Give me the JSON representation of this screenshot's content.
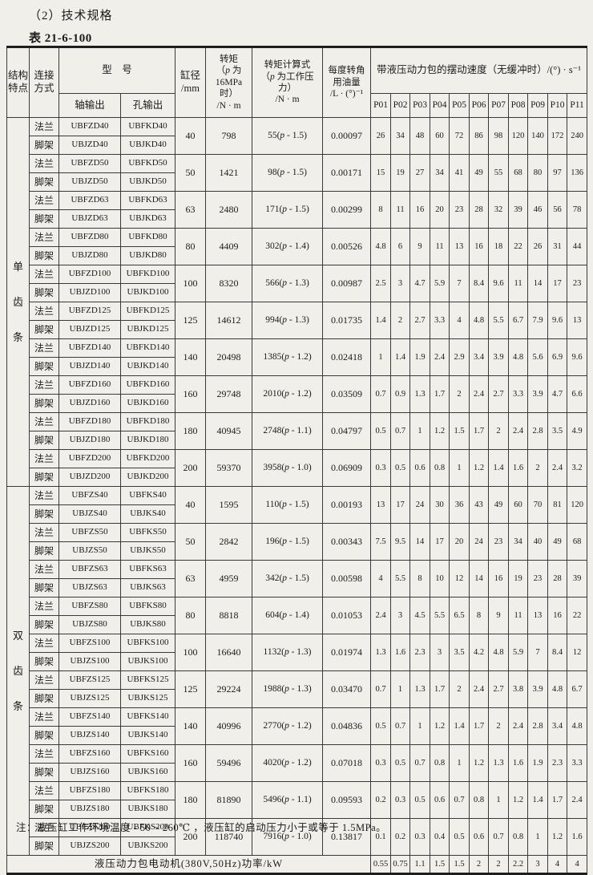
{
  "page": {
    "heading": "（2）技术规格",
    "table_label": "表 21-6-100",
    "note": "注：液压缸工作环境温度 - 50 ~ 260℃ ，液压缸的启动压力小于或等于 1.5MPa。"
  },
  "table": {
    "headers": {
      "structure": "结构\n特点",
      "connection": "连接\n方式",
      "model": "型　号",
      "shaft_output": "轴输出",
      "hole_output": "孔输出",
      "bore": "缸径\n/mm",
      "torque": "转矩\n（p 为\n16MPa 时）\n/N · m",
      "torque_formula": "转矩计算式\n（p 为工作压力）\n/N · m",
      "oil_per_degree": "每度转角\n用油量\n/L · (°)⁻¹",
      "swing_speed": "带液压动力包的摆动速度（无缓冲时）/(°) · s⁻¹",
      "p_columns": [
        "P01",
        "P02",
        "P03",
        "P04",
        "P05",
        "P06",
        "P07",
        "P08",
        "P09",
        "P10",
        "P11"
      ]
    },
    "groups": [
      {
        "structure": "单\n齿\n条",
        "rows": [
          {
            "bore": "40",
            "torque": "798",
            "formula": "55(p-1.5)",
            "oil": "0.00097",
            "speeds": [
              "26",
              "34",
              "48",
              "60",
              "72",
              "86",
              "98",
              "120",
              "140",
              "172",
              "240"
            ],
            "models": [
              {
                "connection": "法兰",
                "shaft": "UBFZD40",
                "hole": "UBFKD40"
              },
              {
                "connection": "脚架",
                "shaft": "UBJZD40",
                "hole": "UBJKD40"
              }
            ]
          },
          {
            "bore": "50",
            "torque": "1421",
            "formula": "98(p-1.5)",
            "oil": "0.00171",
            "speeds": [
              "15",
              "19",
              "27",
              "34",
              "41",
              "49",
              "55",
              "68",
              "80",
              "97",
              "136"
            ],
            "models": [
              {
                "connection": "法兰",
                "shaft": "UBFZD50",
                "hole": "UBFKD50"
              },
              {
                "connection": "脚架",
                "shaft": "UBJZD50",
                "hole": "UBJKD50"
              }
            ]
          },
          {
            "bore": "63",
            "torque": "2480",
            "formula": "171(p-1.5)",
            "oil": "0.00299",
            "speeds": [
              "8",
              "11",
              "16",
              "20",
              "23",
              "28",
              "32",
              "39",
              "46",
              "56",
              "78"
            ],
            "models": [
              {
                "connection": "法兰",
                "shaft": "UBFZD63",
                "hole": "UBFKD63"
              },
              {
                "connection": "脚架",
                "shaft": "UBJZD63",
                "hole": "UBJKD63"
              }
            ]
          },
          {
            "bore": "80",
            "torque": "4409",
            "formula": "302(p-1.4)",
            "oil": "0.00526",
            "speeds": [
              "4.8",
              "6",
              "9",
              "11",
              "13",
              "16",
              "18",
              "22",
              "26",
              "31",
              "44"
            ],
            "models": [
              {
                "connection": "法兰",
                "shaft": "UBFZD80",
                "hole": "UBFKD80"
              },
              {
                "connection": "脚架",
                "shaft": "UBJZD80",
                "hole": "UBJKD80"
              }
            ]
          },
          {
            "bore": "100",
            "torque": "8320",
            "formula": "566(p-1.3)",
            "oil": "0.00987",
            "speeds": [
              "2.5",
              "3",
              "4.7",
              "5.9",
              "7",
              "8.4",
              "9.6",
              "11",
              "14",
              "17",
              "23"
            ],
            "models": [
              {
                "connection": "法兰",
                "shaft": "UBFZD100",
                "hole": "UBFKD100"
              },
              {
                "connection": "脚架",
                "shaft": "UBJZD100",
                "hole": "UBJKD100"
              }
            ]
          },
          {
            "bore": "125",
            "torque": "14612",
            "formula": "994(p-1.3)",
            "oil": "0.01735",
            "speeds": [
              "1.4",
              "2",
              "2.7",
              "3.3",
              "4",
              "4.8",
              "5.5",
              "6.7",
              "7.9",
              "9.6",
              "13"
            ],
            "models": [
              {
                "connection": "法兰",
                "shaft": "UBFZD125",
                "hole": "UBFKD125"
              },
              {
                "connection": "脚架",
                "shaft": "UBJZD125",
                "hole": "UBJKD125"
              }
            ]
          },
          {
            "bore": "140",
            "torque": "20498",
            "formula": "1385(p-1.2)",
            "oil": "0.02418",
            "speeds": [
              "1",
              "1.4",
              "1.9",
              "2.4",
              "2.9",
              "3.4",
              "3.9",
              "4.8",
              "5.6",
              "6.9",
              "9.6"
            ],
            "models": [
              {
                "connection": "法兰",
                "shaft": "UBFZD140",
                "hole": "UBFKD140"
              },
              {
                "connection": "脚架",
                "shaft": "UBJZD140",
                "hole": "UBJKD140"
              }
            ]
          },
          {
            "bore": "160",
            "torque": "29748",
            "formula": "2010(p-1.2)",
            "oil": "0.03509",
            "speeds": [
              "0.7",
              "0.9",
              "1.3",
              "1.7",
              "2",
              "2.4",
              "2.7",
              "3.3",
              "3.9",
              "4.7",
              "6.6"
            ],
            "models": [
              {
                "connection": "法兰",
                "shaft": "UBFZD160",
                "hole": "UBFKD160"
              },
              {
                "connection": "脚架",
                "shaft": "UBJZD160",
                "hole": "UBJKD160"
              }
            ]
          },
          {
            "bore": "180",
            "torque": "40945",
            "formula": "2748(p-1.1)",
            "oil": "0.04797",
            "speeds": [
              "0.5",
              "0.7",
              "1",
              "1.2",
              "1.5",
              "1.7",
              "2",
              "2.4",
              "2.8",
              "3.5",
              "4.9"
            ],
            "models": [
              {
                "connection": "法兰",
                "shaft": "UBFZD180",
                "hole": "UBFKD180"
              },
              {
                "connection": "脚架",
                "shaft": "UBJZD180",
                "hole": "UBJKD180"
              }
            ]
          },
          {
            "bore": "200",
            "torque": "59370",
            "formula": "3958(p-1.0)",
            "oil": "0.06909",
            "speeds": [
              "0.3",
              "0.5",
              "0.6",
              "0.8",
              "1",
              "1.2",
              "1.4",
              "1.6",
              "2",
              "2.4",
              "3.2"
            ],
            "models": [
              {
                "connection": "法兰",
                "shaft": "UBFZD200",
                "hole": "UBFKD200"
              },
              {
                "connection": "脚架",
                "shaft": "UBJZD200",
                "hole": "UBJKD200"
              }
            ]
          }
        ]
      },
      {
        "structure": "双\n齿\n条",
        "rows": [
          {
            "bore": "40",
            "torque": "1595",
            "formula": "110(p-1.5)",
            "oil": "0.00193",
            "speeds": [
              "13",
              "17",
              "24",
              "30",
              "36",
              "43",
              "49",
              "60",
              "70",
              "81",
              "120"
            ],
            "models": [
              {
                "connection": "法兰",
                "shaft": "UBFZS40",
                "hole": "UBFKS40"
              },
              {
                "connection": "脚架",
                "shaft": "UBJZS40",
                "hole": "UBJKS40"
              }
            ]
          },
          {
            "bore": "50",
            "torque": "2842",
            "formula": "196(p-1.5)",
            "oil": "0.00343",
            "speeds": [
              "7.5",
              "9.5",
              "14",
              "17",
              "20",
              "24",
              "23",
              "34",
              "40",
              "49",
              "68"
            ],
            "models": [
              {
                "connection": "法兰",
                "shaft": "UBFZS50",
                "hole": "UBFKS50"
              },
              {
                "connection": "脚架",
                "shaft": "UBJZS50",
                "hole": "UBJKS50"
              }
            ]
          },
          {
            "bore": "63",
            "torque": "4959",
            "formula": "342(p-1.5)",
            "oil": "0.00598",
            "speeds": [
              "4",
              "5.5",
              "8",
              "10",
              "12",
              "14",
              "16",
              "19",
              "23",
              "28",
              "39"
            ],
            "models": [
              {
                "connection": "法兰",
                "shaft": "UBFZS63",
                "hole": "UBFKS63"
              },
              {
                "connection": "脚架",
                "shaft": "UBJZS63",
                "hole": "UBJKS63"
              }
            ]
          },
          {
            "bore": "80",
            "torque": "8818",
            "formula": "604(p-1.4)",
            "oil": "0.01053",
            "speeds": [
              "2.4",
              "3",
              "4.5",
              "5.5",
              "6.5",
              "8",
              "9",
              "11",
              "13",
              "16",
              "22"
            ],
            "models": [
              {
                "connection": "法兰",
                "shaft": "UBFZS80",
                "hole": "UBFKS80"
              },
              {
                "connection": "脚架",
                "shaft": "UBJZS80",
                "hole": "UBJKS80"
              }
            ]
          },
          {
            "bore": "100",
            "torque": "16640",
            "formula": "1132(p-1.3)",
            "oil": "0.01974",
            "speeds": [
              "1.3",
              "1.6",
              "2.3",
              "3",
              "3.5",
              "4.2",
              "4.8",
              "5.9",
              "7",
              "8.4",
              "12"
            ],
            "models": [
              {
                "connection": "法兰",
                "shaft": "UBFZS100",
                "hole": "UBFKS100"
              },
              {
                "connection": "脚架",
                "shaft": "UBJZS100",
                "hole": "UBJKS100"
              }
            ]
          },
          {
            "bore": "125",
            "torque": "29224",
            "formula": "1988(p-1.3)",
            "oil": "0.03470",
            "speeds": [
              "0.7",
              "1",
              "1.3",
              "1.7",
              "2",
              "2.4",
              "2.7",
              "3.8",
              "3.9",
              "4.8",
              "6.7"
            ],
            "models": [
              {
                "connection": "法兰",
                "shaft": "UBFZS125",
                "hole": "UBFKS125"
              },
              {
                "connection": "脚架",
                "shaft": "UBJZS125",
                "hole": "UBJKS125"
              }
            ]
          },
          {
            "bore": "140",
            "torque": "40996",
            "formula": "2770(p-1.2)",
            "oil": "0.04836",
            "speeds": [
              "0.5",
              "0.7",
              "1",
              "1.2",
              "1.4",
              "1.7",
              "2",
              "2.4",
              "2.8",
              "3.4",
              "4.8"
            ],
            "models": [
              {
                "connection": "法兰",
                "shaft": "UBFZS140",
                "hole": "UBFKS140"
              },
              {
                "connection": "脚架",
                "shaft": "UBJZS140",
                "hole": "UBJKS140"
              }
            ]
          },
          {
            "bore": "160",
            "torque": "59496",
            "formula": "4020(p-1.2)",
            "oil": "0.07018",
            "speeds": [
              "0.3",
              "0.5",
              "0.7",
              "0.8",
              "1",
              "1.2",
              "1.3",
              "1.6",
              "1.9",
              "2.3",
              "3.3"
            ],
            "models": [
              {
                "connection": "法兰",
                "shaft": "UBFZS160",
                "hole": "UBFKS160"
              },
              {
                "connection": "脚架",
                "shaft": "UBJZS160",
                "hole": "UBJKS160"
              }
            ]
          },
          {
            "bore": "180",
            "torque": "81890",
            "formula": "5496(p-1.1)",
            "oil": "0.09593",
            "speeds": [
              "0.2",
              "0.3",
              "0.5",
              "0.6",
              "0.7",
              "0.8",
              "1",
              "1.2",
              "1.4",
              "1.7",
              "2.4"
            ],
            "models": [
              {
                "connection": "法兰",
                "shaft": "UBFZS180",
                "hole": "UBFKS180"
              },
              {
                "connection": "脚架",
                "shaft": "UBJZS180",
                "hole": "UBJKS180"
              }
            ]
          },
          {
            "bore": "200",
            "torque": "118740",
            "formula": "7916(p-1.0)",
            "oil": "0.13817",
            "speeds": [
              "0.1",
              "0.2",
              "0.3",
              "0.4",
              "0.5",
              "0.6",
              "0.7",
              "0.8",
              "1",
              "1.2",
              "1.6"
            ],
            "models": [
              {
                "connection": "法兰",
                "shaft": "UBFZS200",
                "hole": "UBFKS200"
              },
              {
                "connection": "脚架",
                "shaft": "UBJZS200",
                "hole": "UBJKS200"
              }
            ]
          }
        ]
      }
    ],
    "footer": {
      "label": "液压动力包电动机(380V,50Hz)功率/kW",
      "values": [
        "0.55",
        "0.75",
        "1.1",
        "1.5",
        "1.5",
        "2",
        "2",
        "2.2",
        "3",
        "4",
        "4"
      ]
    }
  }
}
